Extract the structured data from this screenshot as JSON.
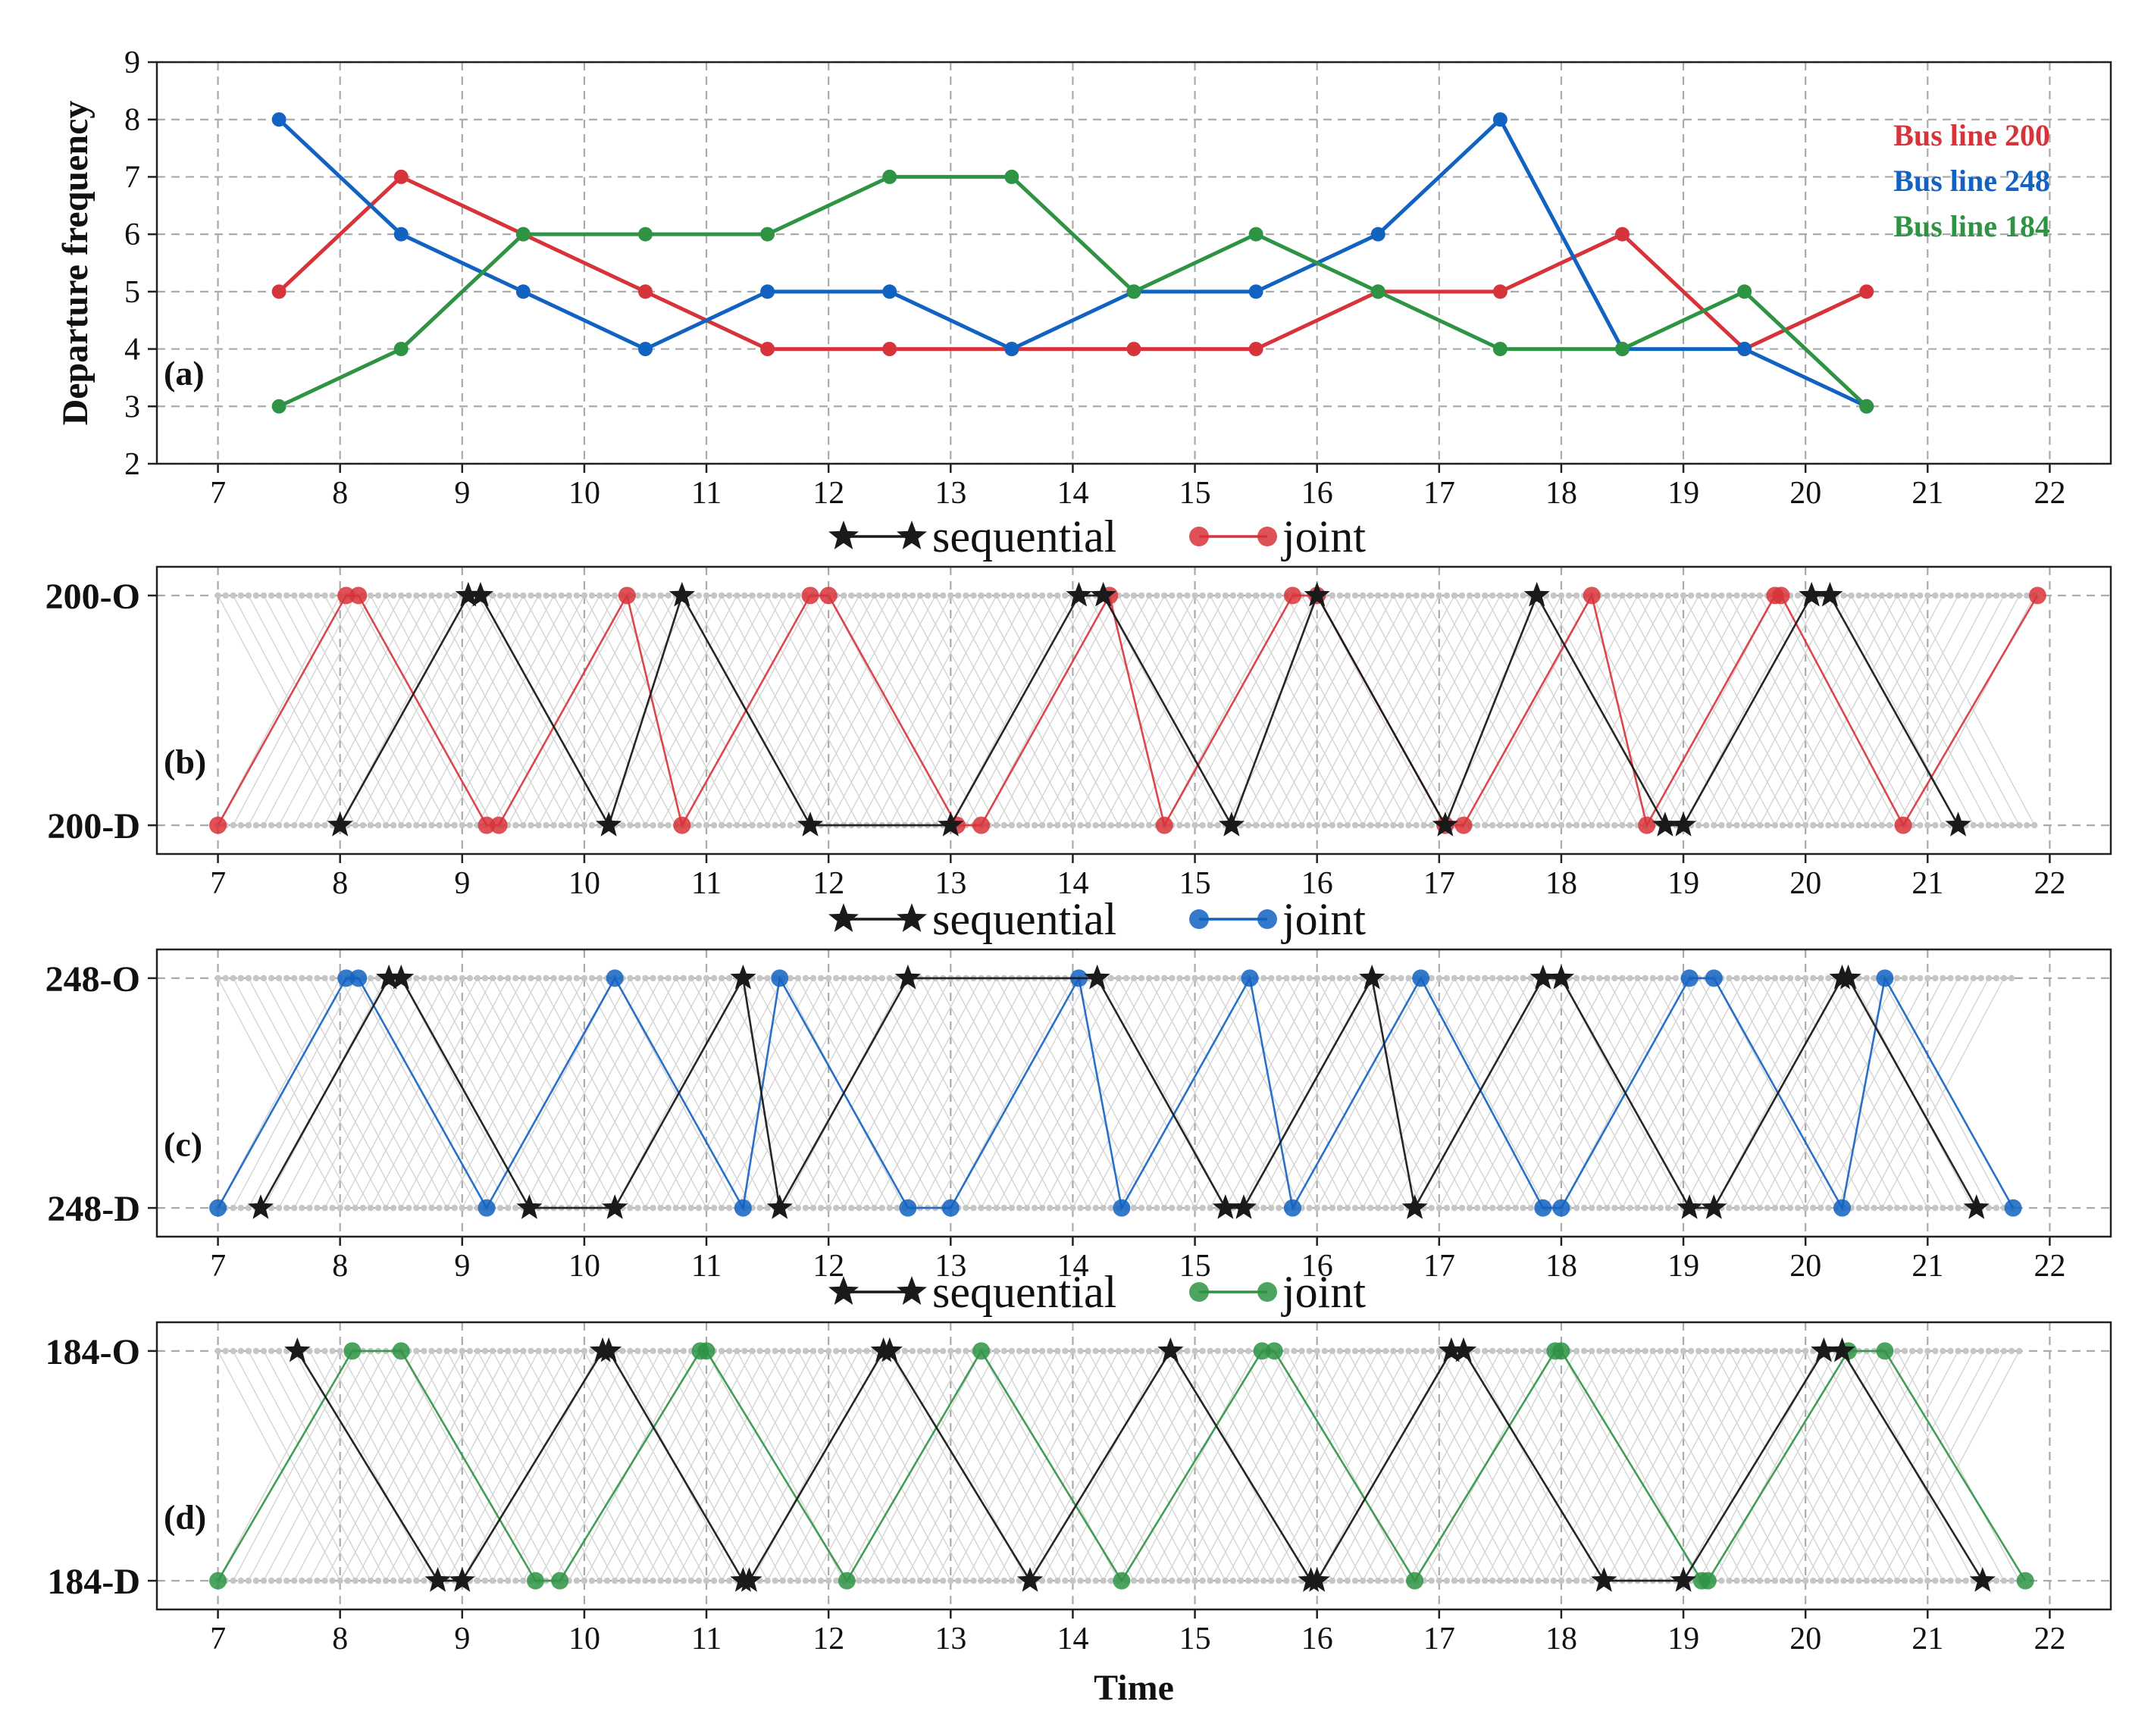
{
  "colors": {
    "line200": "#d7333a",
    "line248": "#1262c2",
    "line184": "#2e9444",
    "sequential": "#1a1a1a",
    "background_trips": "#d4d4d4"
  },
  "chart_data": [
    {
      "id": "a",
      "panel_label": "(a)",
      "type": "line",
      "xlabel": "",
      "ylabel": "Departure frequency",
      "xlim": [
        6.5,
        22.5
      ],
      "ylim": [
        2,
        9
      ],
      "xticks": [
        7,
        8,
        9,
        10,
        11,
        12,
        13,
        14,
        15,
        16,
        17,
        18,
        19,
        20,
        21,
        22
      ],
      "yticks": [
        2,
        3,
        4,
        5,
        6,
        7,
        8,
        9
      ],
      "grid": true,
      "legend_position": "top-right",
      "x": [
        7.5,
        8.5,
        9.5,
        10.5,
        11.5,
        12.5,
        13.5,
        14.5,
        15.5,
        16.5,
        17.5,
        18.5,
        19.5,
        20.5
      ],
      "series": [
        {
          "name": "Bus line 200",
          "color": "#d7333a",
          "values": [
            5,
            7,
            6,
            5,
            4,
            4,
            4,
            4,
            4,
            5,
            5,
            6,
            4,
            5
          ]
        },
        {
          "name": "Bus line 248",
          "color": "#1262c2",
          "values": [
            8,
            6,
            5,
            4,
            5,
            5,
            4,
            5,
            5,
            6,
            8,
            4,
            4,
            3
          ]
        },
        {
          "name": "Bus line 184",
          "color": "#2e9444",
          "values": [
            3,
            4,
            6,
            6,
            6,
            7,
            7,
            5,
            6,
            5,
            4,
            4,
            5,
            3
          ]
        }
      ]
    },
    {
      "id": "b",
      "panel_label": "(b)",
      "type": "line",
      "xlabel": "",
      "xlim": [
        6.5,
        22.5
      ],
      "xticks": [
        7,
        8,
        9,
        10,
        11,
        12,
        13,
        14,
        15,
        16,
        17,
        18,
        19,
        20,
        21,
        22
      ],
      "y_categories": [
        "200-D",
        "200-O"
      ],
      "legend": {
        "sequential": "sequential",
        "joint": "joint"
      },
      "grid": true,
      "background_trips": {
        "period_start": 7.0,
        "period_end": 21.9,
        "headway": 0.125,
        "travel_time": 1.0
      },
      "series": [
        {
          "name": "joint",
          "marker": "circle",
          "color": "#d7333a",
          "points": [
            [
              7.0,
              "D"
            ],
            [
              8.05,
              "O"
            ],
            [
              8.15,
              "O"
            ],
            [
              9.2,
              "D"
            ],
            [
              9.3,
              "D"
            ],
            [
              10.35,
              "O"
            ],
            [
              10.8,
              "D"
            ],
            [
              11.85,
              "O"
            ],
            [
              12.0,
              "O"
            ],
            [
              13.05,
              "D"
            ],
            [
              13.25,
              "D"
            ],
            [
              14.3,
              "O"
            ],
            [
              14.75,
              "D"
            ],
            [
              15.8,
              "O"
            ],
            [
              16.0,
              "O"
            ],
            [
              17.05,
              "D"
            ],
            [
              17.2,
              "D"
            ],
            [
              18.25,
              "O"
            ],
            [
              18.7,
              "D"
            ],
            [
              19.75,
              "O"
            ],
            [
              19.8,
              "O"
            ],
            [
              20.8,
              "D"
            ],
            [
              21.9,
              "O"
            ]
          ]
        },
        {
          "name": "sequential",
          "marker": "star",
          "color": "#1a1a1a",
          "points": [
            [
              8.0,
              "D"
            ],
            [
              9.05,
              "O"
            ],
            [
              9.15,
              "O"
            ],
            [
              10.2,
              "D"
            ],
            [
              10.8,
              "O"
            ],
            [
              11.85,
              "D"
            ],
            [
              13.0,
              "D"
            ],
            [
              14.05,
              "O"
            ],
            [
              14.25,
              "O"
            ],
            [
              15.3,
              "D"
            ],
            [
              16.0,
              "O"
            ],
            [
              17.05,
              "D"
            ],
            [
              17.8,
              "O"
            ],
            [
              18.85,
              "D"
            ],
            [
              19.0,
              "D"
            ],
            [
              20.05,
              "O"
            ],
            [
              20.2,
              "O"
            ],
            [
              21.25,
              "D"
            ]
          ]
        }
      ]
    },
    {
      "id": "c",
      "panel_label": "(c)",
      "type": "line",
      "xlabel": "",
      "xlim": [
        6.5,
        22.5
      ],
      "xticks": [
        7,
        8,
        9,
        10,
        11,
        12,
        13,
        14,
        15,
        16,
        17,
        18,
        19,
        20,
        21,
        22
      ],
      "y_categories": [
        "248-D",
        "248-O"
      ],
      "legend": {
        "sequential": "sequential",
        "joint": "joint"
      },
      "grid": true,
      "background_trips": {
        "period_start": 7.0,
        "period_end": 21.7,
        "headway": 0.125,
        "travel_time": 1.0
      },
      "series": [
        {
          "name": "joint",
          "marker": "circle",
          "color": "#1262c2",
          "points": [
            [
              7.0,
              "D"
            ],
            [
              8.05,
              "O"
            ],
            [
              8.15,
              "O"
            ],
            [
              9.2,
              "D"
            ],
            [
              10.25,
              "O"
            ],
            [
              11.3,
              "D"
            ],
            [
              11.6,
              "O"
            ],
            [
              12.65,
              "D"
            ],
            [
              13.0,
              "D"
            ],
            [
              14.05,
              "O"
            ],
            [
              14.4,
              "D"
            ],
            [
              15.45,
              "O"
            ],
            [
              15.8,
              "D"
            ],
            [
              16.85,
              "O"
            ],
            [
              17.85,
              "D"
            ],
            [
              18.0,
              "D"
            ],
            [
              19.05,
              "O"
            ],
            [
              19.25,
              "O"
            ],
            [
              20.3,
              "D"
            ],
            [
              20.65,
              "O"
            ],
            [
              21.7,
              "D"
            ]
          ]
        },
        {
          "name": "sequential",
          "marker": "star",
          "color": "#1a1a1a",
          "points": [
            [
              7.35,
              "D"
            ],
            [
              8.4,
              "O"
            ],
            [
              8.5,
              "O"
            ],
            [
              9.55,
              "D"
            ],
            [
              10.25,
              "D"
            ],
            [
              11.3,
              "O"
            ],
            [
              11.6,
              "D"
            ],
            [
              12.65,
              "O"
            ],
            [
              14.2,
              "O"
            ],
            [
              15.25,
              "D"
            ],
            [
              15.4,
              "D"
            ],
            [
              16.45,
              "O"
            ],
            [
              16.8,
              "D"
            ],
            [
              17.85,
              "O"
            ],
            [
              18.0,
              "O"
            ],
            [
              19.05,
              "D"
            ],
            [
              19.25,
              "D"
            ],
            [
              20.3,
              "O"
            ],
            [
              20.35,
              "O"
            ],
            [
              21.4,
              "D"
            ]
          ]
        }
      ]
    },
    {
      "id": "d",
      "panel_label": "(d)",
      "type": "line",
      "xlabel": "Time",
      "xlim": [
        6.5,
        22.5
      ],
      "xticks": [
        7,
        8,
        9,
        10,
        11,
        12,
        13,
        14,
        15,
        16,
        17,
        18,
        19,
        20,
        21,
        22
      ],
      "y_categories": [
        "184-D",
        "184-O"
      ],
      "legend": {
        "sequential": "sequential",
        "joint": "joint"
      },
      "grid": true,
      "background_trips": {
        "period_start": 7.0,
        "period_end": 21.8,
        "headway": 0.125,
        "travel_time": 1.0
      },
      "series": [
        {
          "name": "joint",
          "marker": "circle",
          "color": "#2e9444",
          "points": [
            [
              7.0,
              "D"
            ],
            [
              8.1,
              "O"
            ],
            [
              8.5,
              "O"
            ],
            [
              9.6,
              "D"
            ],
            [
              9.8,
              "D"
            ],
            [
              10.95,
              "O"
            ],
            [
              11.0,
              "O"
            ],
            [
              12.15,
              "D"
            ],
            [
              13.25,
              "O"
            ],
            [
              14.4,
              "D"
            ],
            [
              15.55,
              "O"
            ],
            [
              15.65,
              "O"
            ],
            [
              16.8,
              "D"
            ],
            [
              17.95,
              "O"
            ],
            [
              18.0,
              "O"
            ],
            [
              19.15,
              "D"
            ],
            [
              19.2,
              "D"
            ],
            [
              20.35,
              "O"
            ],
            [
              20.65,
              "O"
            ],
            [
              21.8,
              "D"
            ]
          ]
        },
        {
          "name": "sequential",
          "marker": "star",
          "color": "#1a1a1a",
          "points": [
            [
              7.65,
              "O"
            ],
            [
              8.8,
              "D"
            ],
            [
              9.0,
              "D"
            ],
            [
              10.15,
              "O"
            ],
            [
              10.2,
              "O"
            ],
            [
              11.3,
              "D"
            ],
            [
              11.35,
              "D"
            ],
            [
              12.45,
              "O"
            ],
            [
              12.5,
              "O"
            ],
            [
              13.65,
              "D"
            ],
            [
              14.8,
              "O"
            ],
            [
              15.95,
              "D"
            ],
            [
              16.0,
              "D"
            ],
            [
              17.1,
              "O"
            ],
            [
              17.2,
              "O"
            ],
            [
              18.35,
              "D"
            ],
            [
              19.0,
              "D"
            ],
            [
              20.15,
              "O"
            ],
            [
              20.3,
              "O"
            ],
            [
              21.45,
              "D"
            ]
          ]
        }
      ]
    }
  ]
}
